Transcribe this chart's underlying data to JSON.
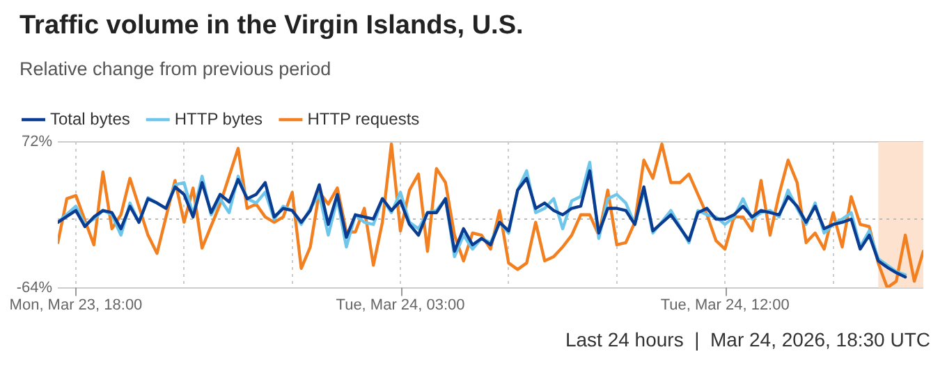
{
  "chart_data": {
    "type": "line",
    "title": "Traffic volume in the Virgin Islands, U.S.",
    "subtitle": "Relative change from previous period",
    "annotations": [
      "Last 24 hours  |  Mar 24, 2026, 18:30 UTC"
    ],
    "x": [
      "2026-03-23T17:30",
      "2026-03-23T18:00",
      "2026-03-23T18:15",
      "2026-03-23T18:30",
      "2026-03-23T18:45",
      "2026-03-23T19:00",
      "2026-03-23T19:15",
      "2026-03-23T19:30",
      "2026-03-23T19:45",
      "2026-03-23T20:00",
      "2026-03-23T20:15",
      "2026-03-23T20:30",
      "2026-03-23T20:45",
      "2026-03-23T21:00",
      "2026-03-23T21:15",
      "2026-03-23T21:30",
      "2026-03-23T21:45",
      "2026-03-23T22:00",
      "2026-03-23T22:15",
      "2026-03-23T22:30",
      "2026-03-23T22:45",
      "2026-03-23T23:00",
      "2026-03-23T23:15",
      "2026-03-23T23:30",
      "2026-03-23T23:45",
      "2026-03-24T00:00",
      "2026-03-24T00:15",
      "2026-03-24T00:30",
      "2026-03-24T00:45",
      "2026-03-24T01:00",
      "2026-03-24T01:15",
      "2026-03-24T01:30",
      "2026-03-24T01:45",
      "2026-03-24T02:00",
      "2026-03-24T02:15",
      "2026-03-24T02:30",
      "2026-03-24T02:45",
      "2026-03-24T03:00",
      "2026-03-24T03:15",
      "2026-03-24T03:30",
      "2026-03-24T03:45",
      "2026-03-24T04:00",
      "2026-03-24T04:15",
      "2026-03-24T04:30",
      "2026-03-24T04:45",
      "2026-03-24T05:00",
      "2026-03-24T05:15",
      "2026-03-24T05:30",
      "2026-03-24T05:45",
      "2026-03-24T06:00",
      "2026-03-24T06:15",
      "2026-03-24T06:30",
      "2026-03-24T06:45",
      "2026-03-24T07:00",
      "2026-03-24T07:15",
      "2026-03-24T07:30",
      "2026-03-24T07:45",
      "2026-03-24T08:00",
      "2026-03-24T08:15",
      "2026-03-24T08:30",
      "2026-03-24T08:45",
      "2026-03-24T09:00",
      "2026-03-24T09:15",
      "2026-03-24T09:30",
      "2026-03-24T09:45",
      "2026-03-24T10:00",
      "2026-03-24T10:30",
      "2026-03-24T11:00",
      "2026-03-24T11:15",
      "2026-03-24T11:30",
      "2026-03-24T11:45",
      "2026-03-24T12:00",
      "2026-03-24T12:15",
      "2026-03-24T12:30",
      "2026-03-24T12:45",
      "2026-03-24T13:00",
      "2026-03-24T13:15",
      "2026-03-24T13:30",
      "2026-03-24T13:45",
      "2026-03-24T14:00",
      "2026-03-24T14:15",
      "2026-03-24T14:30",
      "2026-03-24T14:45",
      "2026-03-24T15:00",
      "2026-03-24T15:15",
      "2026-03-24T15:30",
      "2026-03-24T15:45",
      "2026-03-24T16:00",
      "2026-03-24T16:15",
      "2026-03-24T16:30",
      "2026-03-24T16:45",
      "2026-03-24T17:00"
    ],
    "series": [
      {
        "name": "Total bytes",
        "color": "#0a3d91",
        "values": [
          -3,
          8,
          -7,
          2,
          8,
          6,
          -9,
          12,
          -3,
          19,
          15,
          10,
          30,
          23,
          2,
          34,
          6,
          23,
          16,
          37,
          19,
          23,
          34,
          2,
          10,
          8,
          -3,
          8,
          32,
          -5,
          23,
          -17,
          4,
          2,
          0,
          19,
          8,
          17,
          -5,
          -15,
          6,
          6,
          19,
          -30,
          -9,
          -24,
          -18,
          -24,
          -3,
          -11,
          27,
          38,
          10,
          15,
          8,
          4,
          10,
          12,
          45,
          -13,
          10,
          10,
          8,
          -5,
          30,
          -11,
          4,
          -20,
          6,
          10,
          0,
          0,
          4,
          12,
          2,
          8,
          6,
          4,
          21,
          12,
          -3,
          12,
          -9,
          -5,
          -3,
          0,
          -28,
          -15,
          -39,
          -45,
          -50,
          -54
        ]
      },
      {
        "name": "HTTP bytes",
        "color": "#6ec6ea",
        "values": [
          -3,
          12,
          -5,
          0,
          8,
          4,
          -15,
          15,
          -3,
          20,
          15,
          10,
          32,
          34,
          4,
          40,
          4,
          19,
          6,
          40,
          19,
          15,
          25,
          0,
          12,
          8,
          -5,
          10,
          23,
          -15,
          19,
          -26,
          4,
          -3,
          -5,
          19,
          6,
          25,
          -3,
          -9,
          6,
          8,
          19,
          -35,
          -15,
          -28,
          -18,
          -22,
          -3,
          -13,
          27,
          45,
          6,
          10,
          19,
          -9,
          17,
          21,
          53,
          -18,
          19,
          23,
          15,
          -5,
          27,
          -13,
          8,
          -22,
          8,
          4,
          2,
          -5,
          2,
          19,
          0,
          6,
          8,
          2,
          27,
          10,
          -5,
          15,
          -13,
          -5,
          0,
          6,
          -26,
          -11,
          -37,
          -43,
          -49,
          -52
        ]
      },
      {
        "name": "HTTP requests",
        "color": "#f38020",
        "x": [
          "2026-03-23T17:30",
          "2026-03-23T17:45",
          "2026-03-23T18:00",
          "2026-03-23T18:30",
          "2026-03-23T18:45",
          "2026-03-23T19:00",
          "2026-03-23T19:15",
          "2026-03-23T19:30",
          "2026-03-23T20:00",
          "2026-03-23T20:15",
          "2026-03-23T20:45",
          "2026-03-23T21:00",
          "2026-03-23T21:15",
          "2026-03-23T21:30",
          "2026-03-23T22:00",
          "2026-03-23T22:30",
          "2026-03-23T22:45",
          "2026-03-23T23:00",
          "2026-03-23T23:15",
          "2026-03-23T23:30",
          "2026-03-23T23:45",
          "2026-03-24T00:00",
          "2026-03-24T00:15",
          "2026-03-24T00:30",
          "2026-03-24T00:45",
          "2026-03-24T01:00",
          "2026-03-24T01:15",
          "2026-03-24T01:30",
          "2026-03-24T01:45",
          "2026-03-24T02:00",
          "2026-03-24T02:15",
          "2026-03-24T02:30",
          "2026-03-24T02:45",
          "2026-03-24T03:00",
          "2026-03-24T03:15",
          "2026-03-24T03:30",
          "2026-03-24T03:45",
          "2026-03-24T04:00",
          "2026-03-24T04:15",
          "2026-03-24T04:30",
          "2026-03-24T04:45",
          "2026-03-24T05:00",
          "2026-03-24T05:15",
          "2026-03-24T05:30",
          "2026-03-24T05:45",
          "2026-03-24T06:00",
          "2026-03-24T06:15",
          "2026-03-24T06:30",
          "2026-03-24T06:45",
          "2026-03-24T07:00",
          "2026-03-24T07:15",
          "2026-03-24T07:30",
          "2026-03-24T07:45",
          "2026-03-24T08:00",
          "2026-03-24T08:15",
          "2026-03-24T08:30",
          "2026-03-24T08:45",
          "2026-03-24T09:00",
          "2026-03-24T09:15",
          "2026-03-24T09:30",
          "2026-03-24T09:45",
          "2026-03-24T10:00",
          "2026-03-24T10:15",
          "2026-03-24T10:30",
          "2026-03-24T10:45",
          "2026-03-24T11:00",
          "2026-03-24T11:15",
          "2026-03-24T11:30",
          "2026-03-24T11:45",
          "2026-03-24T12:00",
          "2026-03-24T12:15",
          "2026-03-24T12:30",
          "2026-03-24T12:45",
          "2026-03-24T13:00",
          "2026-03-24T13:15",
          "2026-03-24T13:30",
          "2026-03-24T13:45",
          "2026-03-24T14:00",
          "2026-03-24T14:15",
          "2026-03-24T14:30",
          "2026-03-24T14:45",
          "2026-03-24T15:00",
          "2026-03-24T15:15",
          "2026-03-24T15:30",
          "2026-03-24T15:45",
          "2026-03-24T16:00",
          "2026-03-24T16:15",
          "2026-03-24T16:30",
          "2026-03-24T16:45",
          "2026-03-24T17:00",
          "2026-03-24T17:15",
          "2026-03-24T17:30"
        ],
        "values": [
          -22,
          19,
          22,
          -24,
          44,
          -9,
          4,
          38,
          -15,
          -32,
          36,
          -3,
          29,
          -27,
          14,
          66,
          10,
          14,
          2,
          -3,
          2,
          25,
          -46,
          -26,
          25,
          14,
          29,
          -12,
          -12,
          10,
          -43,
          -3,
          70,
          -11,
          27,
          42,
          -30,
          47,
          34,
          -15,
          -39,
          -13,
          -15,
          -28,
          8,
          -41,
          -47,
          -41,
          -3,
          -39,
          -35,
          -26,
          -15,
          4,
          4,
          -15,
          27,
          -24,
          -22,
          -3,
          55,
          38,
          70,
          34,
          34,
          42,
          23,
          4,
          -20,
          -28,
          2,
          2,
          -11,
          36,
          -15,
          23,
          55,
          34,
          -22,
          -13,
          -28,
          6,
          -26,
          21,
          -5,
          -7,
          -41,
          -64,
          -58,
          -15,
          -58,
          -30
        ]
      }
    ],
    "xlim": [
      "2026-03-23T17:30",
      "2026-03-24T17:30"
    ],
    "xticks": [
      {
        "value": "2026-03-23T18:00",
        "label": "Mon, Mar 23, 18:00"
      },
      {
        "value": "2026-03-23T21:00",
        "label": null
      },
      {
        "value": "2026-03-24T00:00",
        "label": null
      },
      {
        "value": "2026-03-24T03:00",
        "label": "Tue, Mar 24, 03:00"
      },
      {
        "value": "2026-03-24T06:00",
        "label": null
      },
      {
        "value": "2026-03-24T09:00",
        "label": null
      },
      {
        "value": "2026-03-24T12:00",
        "label": "Tue, Mar 24, 12:00"
      },
      {
        "value": "2026-03-24T15:00",
        "label": null
      }
    ],
    "ylim": [
      -64,
      72
    ],
    "yticks": [
      {
        "value": -64,
        "label": "-64%"
      },
      {
        "value": 72,
        "label": "72%"
      }
    ],
    "ref_lines": [
      {
        "axis": "y",
        "value": 0,
        "label": null,
        "color": "#bbbbbb",
        "line_style": "dotted"
      }
    ],
    "bands": [
      {
        "axis": "x",
        "from": "2026-03-24T16:15",
        "to": "2026-03-24T17:30",
        "label": null,
        "color": "#fde3cf"
      }
    ],
    "grid": true,
    "legend": "top left",
    "marker": "none",
    "line_style": "solid"
  }
}
